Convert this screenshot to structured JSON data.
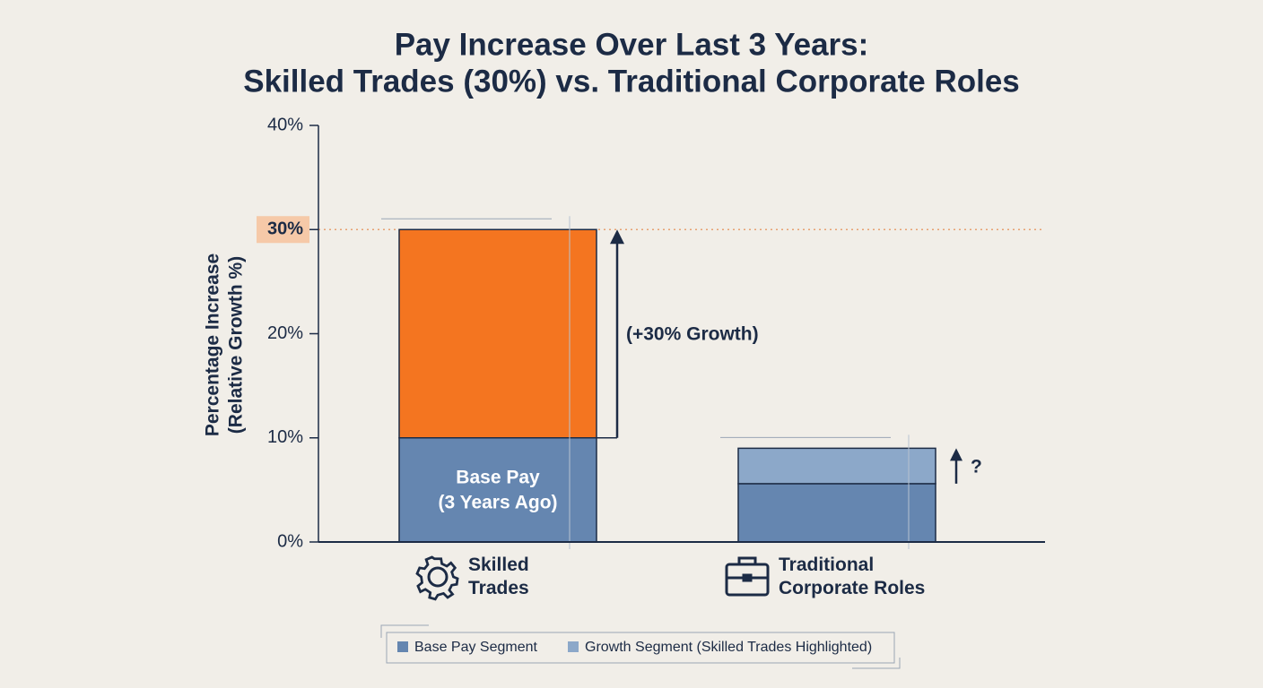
{
  "chart_data": {
    "type": "stacked_bar",
    "title": [
      "Pay Increase Over Last 3 Years:",
      "Skilled Trades (30%) vs. Traditional Corporate Roles"
    ],
    "y_label": [
      "Percentage Increase",
      "(Relative Growth %)"
    ],
    "categories": [
      "Skilled Trades",
      "Traditional Corporate Roles"
    ],
    "series": [
      {
        "name": "Base Pay Segment",
        "color": "#6586b0",
        "values": [
          10,
          5.6
        ],
        "point_colors": [
          "#6586b0",
          "#6586b0"
        ]
      },
      {
        "name": "Growth Segment (Skilled Trades Highlighted)",
        "color": "#8ca8c9",
        "values": [
          20,
          3.4
        ],
        "point_colors": [
          "#f47520",
          "#8ca8c9"
        ]
      }
    ],
    "ylim": [
      0,
      40
    ],
    "yticks": [
      {
        "value": 0,
        "label": "0%"
      },
      {
        "value": 10,
        "label": "10%"
      },
      {
        "value": 20,
        "label": "20%"
      },
      {
        "value": 30,
        "label": "30%"
      },
      {
        "value": 40,
        "label": "40%"
      }
    ],
    "reference_line": 30,
    "annotations": {
      "bar_label": [
        "Base Pay",
        "(3 Years Ago)"
      ],
      "growth_label": "(+30% Growth)",
      "unknown_label": "?"
    }
  }
}
